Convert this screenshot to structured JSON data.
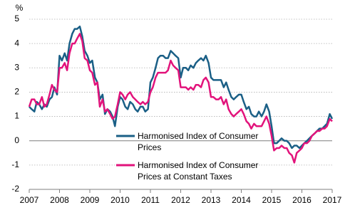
{
  "chart_data": {
    "type": "line",
    "y_label": "%",
    "x": [
      2007,
      2007.08,
      2007.17,
      2007.25,
      2007.33,
      2007.42,
      2007.5,
      2007.58,
      2007.67,
      2007.75,
      2007.83,
      2007.92,
      2008,
      2008.08,
      2008.17,
      2008.25,
      2008.33,
      2008.42,
      2008.5,
      2008.58,
      2008.67,
      2008.75,
      2008.83,
      2008.92,
      2009,
      2009.08,
      2009.17,
      2009.25,
      2009.33,
      2009.42,
      2009.5,
      2009.58,
      2009.67,
      2009.75,
      2009.83,
      2009.92,
      2010,
      2010.08,
      2010.17,
      2010.25,
      2010.33,
      2010.42,
      2010.5,
      2010.58,
      2010.67,
      2010.75,
      2010.83,
      2010.92,
      2011,
      2011.08,
      2011.17,
      2011.25,
      2011.33,
      2011.42,
      2011.5,
      2011.58,
      2011.67,
      2011.75,
      2011.83,
      2011.92,
      2012,
      2012.08,
      2012.17,
      2012.25,
      2012.33,
      2012.42,
      2012.5,
      2012.58,
      2012.67,
      2012.75,
      2012.83,
      2012.92,
      2013,
      2013.08,
      2013.17,
      2013.25,
      2013.33,
      2013.42,
      2013.5,
      2013.58,
      2013.67,
      2013.75,
      2013.83,
      2013.92,
      2014,
      2014.08,
      2014.17,
      2014.25,
      2014.33,
      2014.42,
      2014.5,
      2014.58,
      2014.67,
      2014.75,
      2014.83,
      2014.92,
      2015,
      2015.08,
      2015.17,
      2015.25,
      2015.33,
      2015.42,
      2015.5,
      2015.58,
      2015.67,
      2015.75,
      2015.83,
      2015.92,
      2016,
      2016.08,
      2016.17,
      2016.25,
      2016.33,
      2016.42,
      2016.5,
      2016.58,
      2016.67,
      2016.75,
      2016.83,
      2016.92,
      2017
    ],
    "series": [
      {
        "name": "Harmonised Index of Consumer Prices",
        "color": "#1a5f86",
        "values": [
          1.4,
          1.3,
          1.2,
          1.6,
          1.5,
          1.3,
          1.5,
          1.4,
          1.7,
          1.8,
          2.2,
          1.9,
          3.5,
          3.3,
          3.6,
          3.3,
          4.0,
          4.4,
          4.6,
          4.6,
          4.7,
          4.3,
          3.7,
          3.5,
          3.2,
          3.3,
          2.6,
          2.4,
          1.7,
          1.9,
          1.1,
          1.3,
          1.2,
          1.0,
          0.6,
          1.4,
          1.8,
          1.7,
          1.4,
          1.3,
          1.6,
          1.5,
          1.3,
          1.2,
          1.4,
          1.4,
          1.2,
          1.3,
          2.4,
          2.6,
          3.0,
          3.4,
          3.5,
          3.5,
          3.4,
          3.4,
          3.7,
          3.6,
          3.5,
          3.4,
          2.6,
          3.0,
          3.0,
          2.9,
          3.1,
          3.0,
          3.2,
          3.3,
          3.4,
          3.3,
          3.5,
          3.2,
          2.6,
          2.5,
          2.5,
          2.5,
          2.5,
          2.2,
          2.4,
          2.1,
          1.8,
          1.7,
          1.8,
          1.9,
          1.9,
          1.6,
          1.3,
          1.4,
          1.1,
          1.0,
          1.0,
          1.2,
          1.0,
          1.2,
          1.5,
          1.2,
          0.6,
          -0.1,
          -0.1,
          0.0,
          0.1,
          0.0,
          0.0,
          -0.1,
          -0.3,
          -0.2,
          -0.2,
          -0.3,
          -0.2,
          -0.1,
          0.0,
          0.1,
          0.2,
          0.3,
          0.4,
          0.5,
          0.5,
          0.6,
          0.7,
          1.1,
          0.9
        ]
      },
      {
        "name": "Harmonised Index of Consumer Prices at Constant Taxes",
        "color": "#e2137b",
        "values": [
          1.4,
          1.7,
          1.7,
          1.5,
          1.5,
          1.8,
          1.4,
          1.5,
          1.9,
          2.3,
          2.1,
          2.0,
          3.0,
          3.0,
          3.2,
          2.9,
          3.6,
          4.0,
          4.0,
          4.2,
          4.4,
          4.1,
          3.4,
          3.3,
          2.9,
          2.8,
          2.3,
          2.4,
          1.4,
          1.7,
          1.2,
          1.3,
          1.1,
          0.9,
          1.0,
          1.5,
          2.0,
          1.9,
          1.7,
          1.9,
          2.0,
          1.8,
          1.7,
          1.6,
          1.5,
          1.6,
          1.5,
          1.6,
          2.0,
          2.2,
          2.6,
          2.8,
          2.8,
          2.8,
          2.8,
          2.9,
          3.3,
          3.1,
          3.0,
          2.9,
          2.2,
          2.2,
          2.2,
          2.1,
          2.2,
          2.1,
          2.3,
          2.3,
          2.2,
          2.5,
          2.6,
          2.4,
          1.8,
          1.8,
          1.7,
          1.7,
          1.8,
          1.5,
          1.7,
          1.3,
          1.1,
          1.0,
          1.1,
          1.2,
          1.3,
          1.1,
          0.8,
          0.7,
          0.5,
          0.7,
          0.6,
          0.6,
          0.6,
          0.8,
          1.0,
          0.7,
          0.2,
          -0.4,
          -0.3,
          -0.3,
          -0.2,
          -0.3,
          -0.3,
          -0.5,
          -0.6,
          -0.9,
          -0.5,
          -0.4,
          -0.3,
          -0.1,
          -0.1,
          0.0,
          0.2,
          0.3,
          0.4,
          0.4,
          0.5,
          0.5,
          0.6,
          0.9,
          0.8
        ]
      }
    ],
    "xlim": [
      2007,
      2017
    ],
    "xticks": [
      2007,
      2008,
      2009,
      2010,
      2011,
      2012,
      2013,
      2014,
      2015,
      2016,
      2017
    ],
    "ylim": [
      -2,
      5
    ],
    "yticks": [
      -2,
      -1,
      0,
      1,
      2,
      3,
      4,
      5
    ],
    "grid": true
  }
}
